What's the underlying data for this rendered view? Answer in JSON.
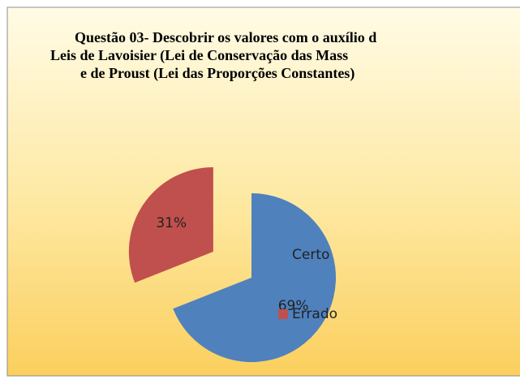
{
  "chart_data": {
    "type": "pie",
    "title": [
      "Questão 03- Descobrir os valores com o auxílio d",
      "Leis de Lavoisier (Lei de Conservação das Mass",
      "e de Proust (Lei das Proporções Constantes)"
    ],
    "categories": [
      "Certo",
      "Errado"
    ],
    "values": [
      69,
      31
    ],
    "value_labels": [
      "69%",
      "31%"
    ],
    "colors": [
      "#4f81bd",
      "#c0504d"
    ],
    "legend": "right"
  }
}
